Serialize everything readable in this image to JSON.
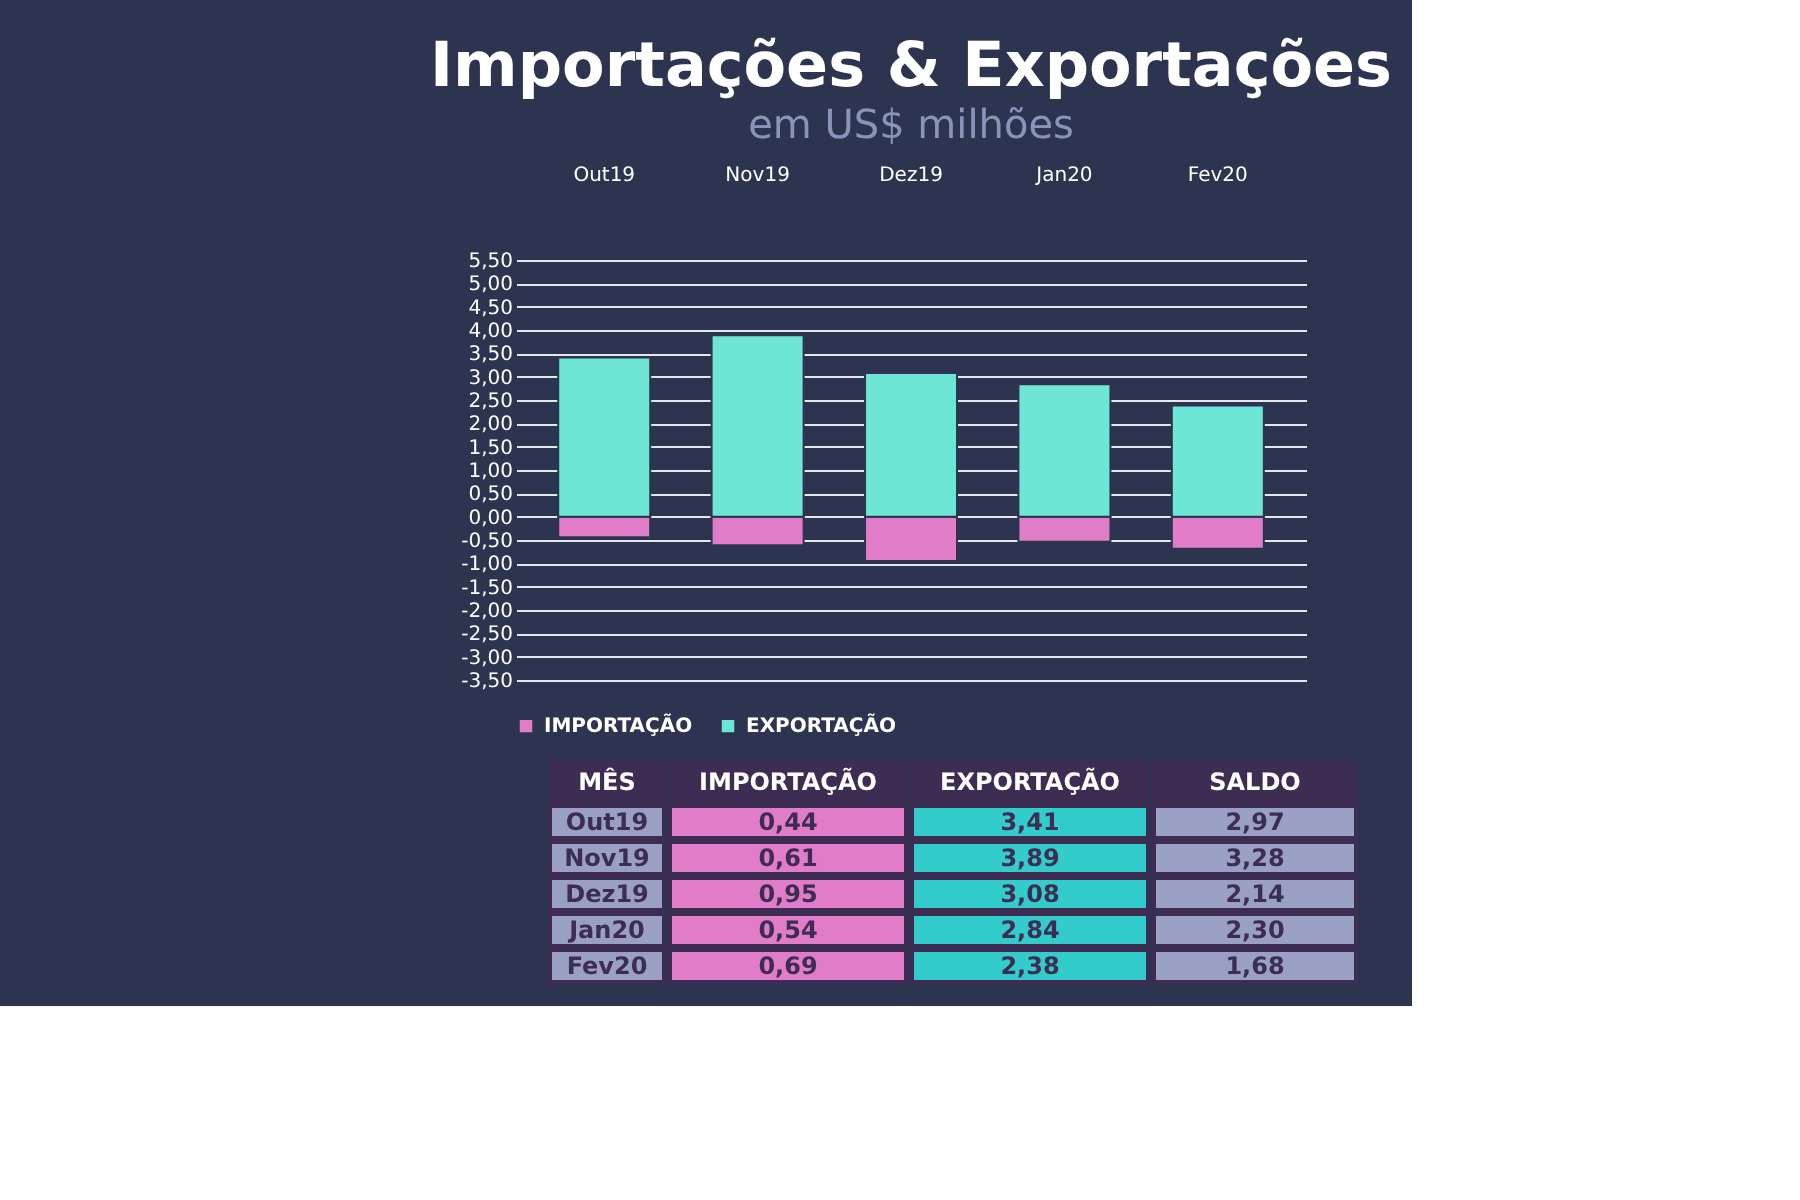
{
  "chart_data": {
    "type": "bar",
    "title": "Importações & Exportações",
    "subtitle": "em US$ milhões",
    "categories": [
      "Out19",
      "Nov19",
      "Dez19",
      "Jan20",
      "Fev20"
    ],
    "stacked": true,
    "series": [
      {
        "name": "IMPORTAÇÃO",
        "color": "#e07cc8",
        "values": [
          -0.44,
          -0.61,
          -0.95,
          -0.54,
          -0.69
        ]
      },
      {
        "name": "EXPORTAÇÃO",
        "color": "#6ee6d6",
        "values": [
          3.41,
          3.89,
          3.08,
          2.84,
          2.38
        ]
      }
    ],
    "ylim": [
      -3.5,
      5.5
    ],
    "yticks": [
      {
        "value": 5.5,
        "label": "5,50"
      },
      {
        "value": 5.0,
        "label": "5,00"
      },
      {
        "value": 4.5,
        "label": "4,50"
      },
      {
        "value": 4.0,
        "label": "4,00"
      },
      {
        "value": 3.5,
        "label": "3,50"
      },
      {
        "value": 3.0,
        "label": "3,00"
      },
      {
        "value": 2.5,
        "label": "2,50"
      },
      {
        "value": 2.0,
        "label": "2,00"
      },
      {
        "value": 1.5,
        "label": "1,50"
      },
      {
        "value": 1.0,
        "label": "1,00"
      },
      {
        "value": 0.5,
        "label": "0,50"
      },
      {
        "value": 0,
        "label": "0,00"
      },
      {
        "value": -0.5,
        "label": "-0,50"
      },
      {
        "value": -1.0,
        "label": "-1,00"
      },
      {
        "value": -1.5,
        "label": "-1,50"
      },
      {
        "value": -2.0,
        "label": "-2,00"
      },
      {
        "value": -2.5,
        "label": "-2,50"
      },
      {
        "value": -3.0,
        "label": "-3,00"
      },
      {
        "value": -3.5,
        "label": "-3,50"
      }
    ],
    "grid": "y",
    "legend": "bottom",
    "annotations": [
      "MÊS",
      "IMPORTAÇÃO",
      "EXPORTAÇÃO",
      "SALDO",
      "Out19",
      "0,44",
      "3,41",
      "2,97",
      "Nov19",
      "0,61",
      "3,89",
      "3,28",
      "Dez19",
      "0,95",
      "3,08",
      "2,14",
      "Jan20",
      "0,54",
      "2,84",
      "2,30",
      "Fev20",
      "0,69",
      "2,38",
      "1,68"
    ]
  }
}
